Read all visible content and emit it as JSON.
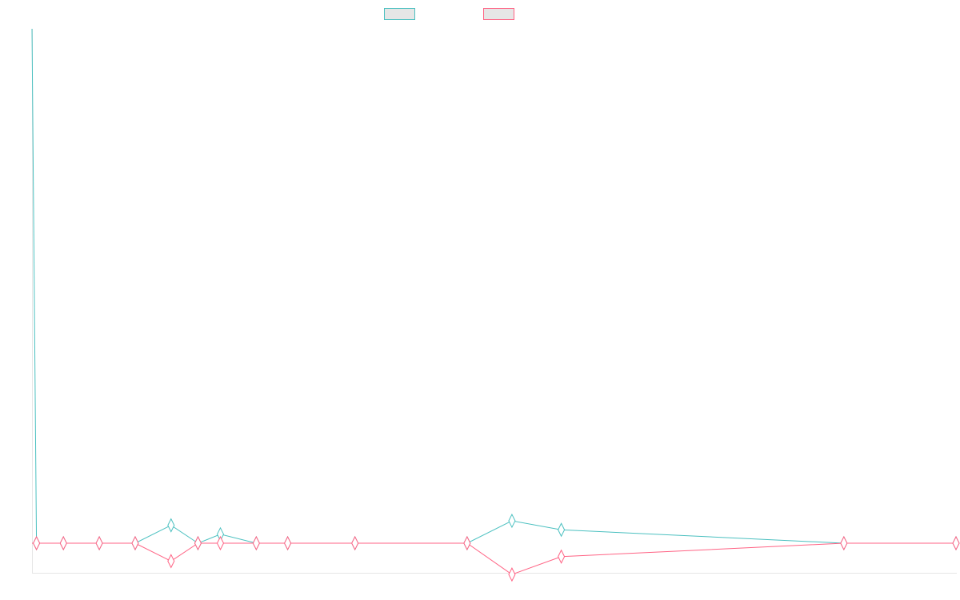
{
  "chart_data": {
    "type": "line",
    "title": "",
    "xlabel": "",
    "ylabel": "",
    "legend_position": "top-center",
    "grid": false,
    "x": [
      0,
      1,
      7,
      15,
      23,
      31,
      37,
      42,
      50,
      57,
      72,
      97,
      107,
      118,
      181,
      206
    ],
    "xlim": [
      0,
      206
    ],
    "ylim": [
      -7,
      115
    ],
    "series": [
      {
        "color": "#4bc0c0",
        "values": [
          115,
          0,
          0,
          0,
          0,
          4,
          0,
          2,
          0,
          0,
          0,
          0,
          5,
          3,
          0,
          0
        ]
      },
      {
        "color": "#ff6384",
        "values": [
          0,
          0,
          0,
          0,
          0,
          -4,
          0,
          0,
          0,
          0,
          0,
          0,
          -7,
          -3,
          0,
          0
        ]
      }
    ],
    "point_style": "diamond"
  }
}
